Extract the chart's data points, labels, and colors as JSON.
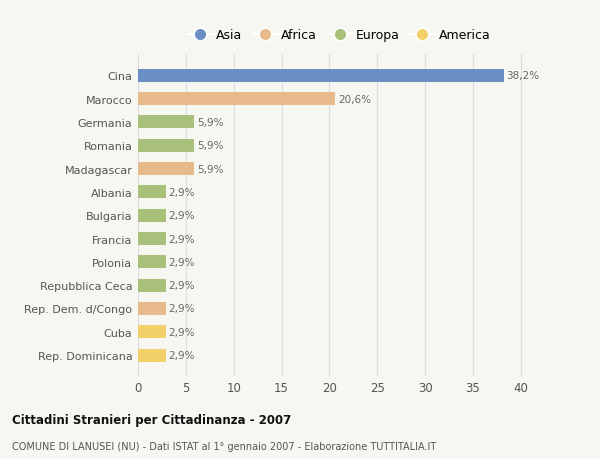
{
  "categories": [
    "Cina",
    "Marocco",
    "Germania",
    "Romania",
    "Madagascar",
    "Albania",
    "Bulgaria",
    "Francia",
    "Polonia",
    "Repubblica Ceca",
    "Rep. Dem. d/Congo",
    "Cuba",
    "Rep. Dominicana"
  ],
  "values": [
    38.2,
    20.6,
    5.9,
    5.9,
    5.9,
    2.9,
    2.9,
    2.9,
    2.9,
    2.9,
    2.9,
    2.9,
    2.9
  ],
  "labels": [
    "38,2%",
    "20,6%",
    "5,9%",
    "5,9%",
    "5,9%",
    "2,9%",
    "2,9%",
    "2,9%",
    "2,9%",
    "2,9%",
    "2,9%",
    "2,9%",
    "2,9%"
  ],
  "colors": [
    "#6b8ec4",
    "#e8b98a",
    "#a8c07a",
    "#a8c07a",
    "#e8b98a",
    "#a8c07a",
    "#a8c07a",
    "#a8c07a",
    "#a8c07a",
    "#a8c07a",
    "#e8b98a",
    "#f2d06a",
    "#f2d06a"
  ],
  "legend_labels": [
    "Asia",
    "Africa",
    "Europa",
    "America"
  ],
  "legend_colors": [
    "#6b8ec4",
    "#e8b98a",
    "#a8c07a",
    "#f2d06a"
  ],
  "xlim": [
    0,
    42
  ],
  "xticks": [
    0,
    5,
    10,
    15,
    20,
    25,
    30,
    35,
    40
  ],
  "title": "Cittadini Stranieri per Cittadinanza - 2007",
  "subtitle": "COMUNE DI LANUSEI (NU) - Dati ISTAT al 1° gennaio 2007 - Elaborazione TUTTITALIA.IT",
  "bg_color": "#f7f7f2",
  "bar_height": 0.55
}
